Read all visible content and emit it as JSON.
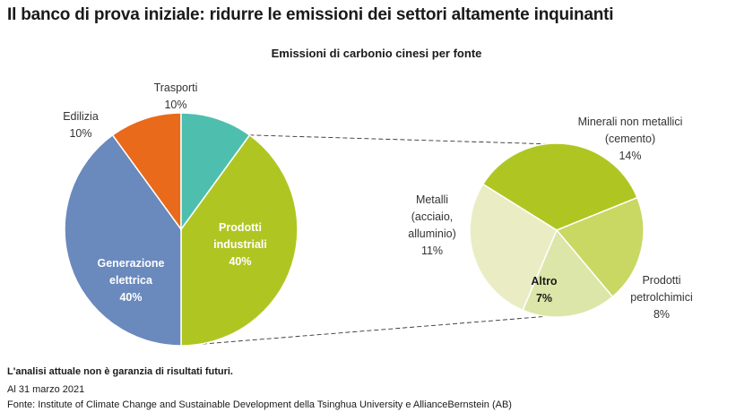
{
  "title": "Il banco di prova iniziale: ridurre le emissioni dei settori altamente inquinanti",
  "subtitle": "Emissioni di carbonio cinesi per fonte",
  "chart_data": {
    "type": "pie",
    "main_pie": {
      "unit": "%",
      "slices": [
        {
          "label": [
            "Prodotti",
            "industriali"
          ],
          "value": 40,
          "value_label": "40%",
          "color": "#afc622",
          "label_pos": "inside"
        },
        {
          "label": [
            "Generazione",
            "elettrica"
          ],
          "value": 40,
          "value_label": "40%",
          "color": "#6a89bd",
          "label_pos": "inside"
        },
        {
          "label": [
            "Edilizia"
          ],
          "value": 10,
          "value_label": "10%",
          "color": "#e86a1a",
          "label_pos": "outside"
        },
        {
          "label": [
            "Trasporti"
          ],
          "value": 10,
          "value_label": "10%",
          "color": "#4ebfae",
          "label_pos": "outside"
        }
      ]
    },
    "breakdown_of": "Prodotti industriali",
    "breakdown_pie": {
      "unit": "%",
      "slices": [
        {
          "label": [
            "Minerali non metallici",
            "(cemento)"
          ],
          "value": 14,
          "value_label": "14%",
          "color": "#afc622",
          "label_pos": "outside"
        },
        {
          "label": [
            "Prodotti",
            "petrolchimici"
          ],
          "value": 8,
          "value_label": "8%",
          "color": "#c8d862",
          "label_pos": "outside"
        },
        {
          "label": [
            "Altro"
          ],
          "value": 7,
          "value_label": "7%",
          "color": "#dce6a8",
          "label_pos": "inside"
        },
        {
          "label": [
            "Metalli",
            "(acciaio,",
            "alluminio)"
          ],
          "value": 11,
          "value_label": "11%",
          "color": "#eaedc4",
          "label_pos": "outside"
        }
      ]
    }
  },
  "footer": {
    "disclaimer": "L'analisi attuale non è garanzia di risultati futuri.",
    "date": "Al 31 marzo 2021",
    "source": "Fonte: Institute of Climate Change and Sustainable Development della Tsinghua University e AllianceBernstein (AB)"
  }
}
